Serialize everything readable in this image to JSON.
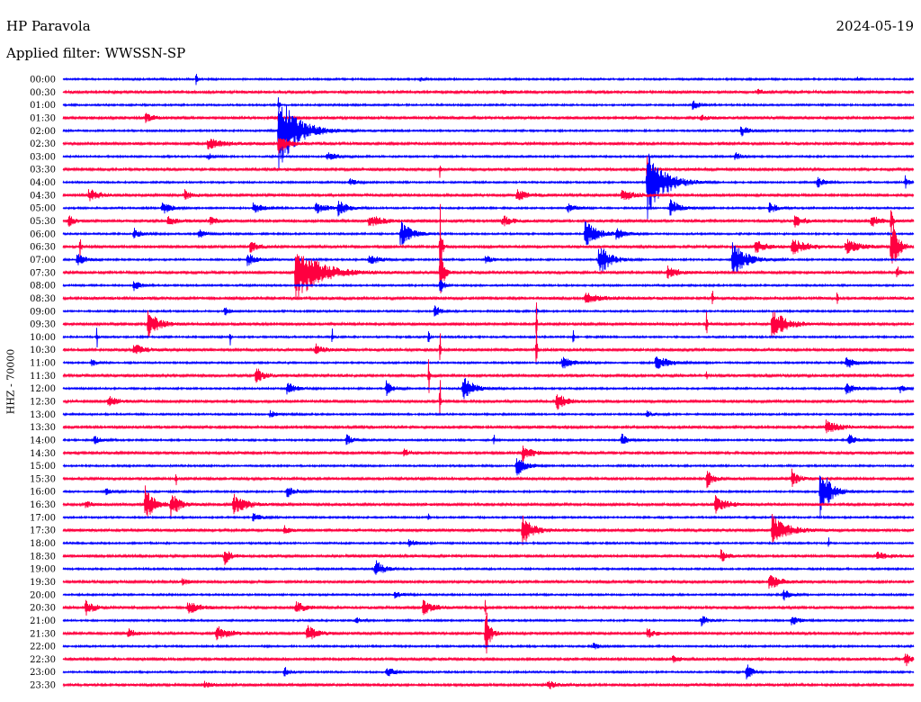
{
  "chart_data": {
    "type": "line",
    "title": "HP Paravola",
    "date": "2024-05-19",
    "subtitle": "Applied filter: WWSSN-SP",
    "xlabel": "",
    "ylabel": "HHZ - 70000",
    "line_colors": [
      "#0000ff",
      "#ff0040"
    ],
    "rows": [
      {
        "label": "00:00",
        "events": [
          {
            "t": 4.7,
            "amp": 6,
            "dur": 0.15
          },
          {
            "t": 12.6,
            "amp": 2,
            "dur": 0.3
          },
          {
            "t": 28.0,
            "amp": 2,
            "dur": 0.3
          }
        ]
      },
      {
        "label": "00:30",
        "events": [
          {
            "t": 15.5,
            "amp": 2,
            "dur": 0.5
          },
          {
            "t": 24.5,
            "amp": 2,
            "dur": 0.6
          }
        ]
      },
      {
        "label": "01:00",
        "events": [
          {
            "t": 7.6,
            "amp": 8,
            "dur": 0.1
          },
          {
            "t": 22.2,
            "amp": 5,
            "dur": 0.6
          }
        ]
      },
      {
        "label": "01:30",
        "events": [
          {
            "t": 2.9,
            "amp": 4,
            "dur": 0.8
          },
          {
            "t": 7.6,
            "amp": 6,
            "dur": 0.2
          },
          {
            "t": 22.5,
            "amp": 3,
            "dur": 0.6
          }
        ]
      },
      {
        "label": "02:00",
        "events": [
          {
            "t": 7.6,
            "amp": 36,
            "dur": 1.8
          },
          {
            "t": 23.9,
            "amp": 5,
            "dur": 0.8
          }
        ]
      },
      {
        "label": "02:30",
        "events": [
          {
            "t": 5.1,
            "amp": 5,
            "dur": 1.4
          },
          {
            "t": 7.6,
            "amp": 10,
            "dur": 0.8
          }
        ]
      },
      {
        "label": "03:00",
        "events": [
          {
            "t": 5.1,
            "amp": 3,
            "dur": 0.6
          },
          {
            "t": 9.3,
            "amp": 4,
            "dur": 1.0
          },
          {
            "t": 23.7,
            "amp": 4,
            "dur": 0.6
          }
        ]
      },
      {
        "label": "03:30",
        "events": [
          {
            "t": 13.3,
            "amp": 10,
            "dur": 0.05
          },
          {
            "t": 20.6,
            "amp": 12,
            "dur": 0.1
          }
        ]
      },
      {
        "label": "04:00",
        "events": [
          {
            "t": 10.1,
            "amp": 4,
            "dur": 0.6
          },
          {
            "t": 20.6,
            "amp": 34,
            "dur": 1.6
          },
          {
            "t": 26.6,
            "amp": 5,
            "dur": 0.6
          },
          {
            "t": 29.7,
            "amp": 6,
            "dur": 0.3
          }
        ]
      },
      {
        "label": "04:30",
        "events": [
          {
            "t": 0.9,
            "amp": 6,
            "dur": 1.0
          },
          {
            "t": 4.3,
            "amp": 5,
            "dur": 0.6
          },
          {
            "t": 16.0,
            "amp": 5,
            "dur": 1.0
          },
          {
            "t": 19.7,
            "amp": 5,
            "dur": 1.2
          }
        ]
      },
      {
        "label": "05:00",
        "events": [
          {
            "t": 3.5,
            "amp": 6,
            "dur": 0.8
          },
          {
            "t": 6.7,
            "amp": 5,
            "dur": 1.0
          },
          {
            "t": 8.9,
            "amp": 5,
            "dur": 1.2
          },
          {
            "t": 9.7,
            "amp": 7,
            "dur": 0.8
          },
          {
            "t": 17.8,
            "amp": 4,
            "dur": 0.8
          },
          {
            "t": 21.4,
            "amp": 8,
            "dur": 1.0
          },
          {
            "t": 24.9,
            "amp": 5,
            "dur": 0.8
          }
        ]
      },
      {
        "label": "05:30",
        "events": [
          {
            "t": 0.2,
            "amp": 5,
            "dur": 0.6
          },
          {
            "t": 3.7,
            "amp": 5,
            "dur": 0.8
          },
          {
            "t": 5.2,
            "amp": 4,
            "dur": 0.6
          },
          {
            "t": 10.8,
            "amp": 6,
            "dur": 1.2
          },
          {
            "t": 15.5,
            "amp": 5,
            "dur": 1.0
          },
          {
            "t": 25.8,
            "amp": 6,
            "dur": 0.8
          },
          {
            "t": 28.5,
            "amp": 5,
            "dur": 1.0
          },
          {
            "t": 29.2,
            "amp": 18,
            "dur": 0.1
          }
        ]
      },
      {
        "label": "06:00",
        "events": [
          {
            "t": 2.5,
            "amp": 5,
            "dur": 0.8
          },
          {
            "t": 4.8,
            "amp": 4,
            "dur": 0.6
          },
          {
            "t": 11.9,
            "amp": 12,
            "dur": 1.0
          },
          {
            "t": 18.4,
            "amp": 12,
            "dur": 1.2
          },
          {
            "t": 19.5,
            "amp": 5,
            "dur": 0.8
          }
        ]
      },
      {
        "label": "06:30",
        "events": [
          {
            "t": 0.6,
            "amp": 10,
            "dur": 0.1
          },
          {
            "t": 6.6,
            "amp": 5,
            "dur": 0.8
          },
          {
            "t": 13.3,
            "amp": 40,
            "dur": 0.15
          },
          {
            "t": 24.4,
            "amp": 6,
            "dur": 1.0
          },
          {
            "t": 25.7,
            "amp": 7,
            "dur": 1.5
          },
          {
            "t": 27.6,
            "amp": 7,
            "dur": 1.2
          },
          {
            "t": 29.2,
            "amp": 30,
            "dur": 0.6
          }
        ]
      },
      {
        "label": "07:00",
        "events": [
          {
            "t": 0.5,
            "amp": 6,
            "dur": 0.8
          },
          {
            "t": 6.5,
            "amp": 6,
            "dur": 0.8
          },
          {
            "t": 10.8,
            "amp": 5,
            "dur": 1.0
          },
          {
            "t": 14.9,
            "amp": 4,
            "dur": 0.6
          },
          {
            "t": 18.9,
            "amp": 16,
            "dur": 1.0
          },
          {
            "t": 23.6,
            "amp": 18,
            "dur": 1.2
          }
        ]
      },
      {
        "label": "07:30",
        "events": [
          {
            "t": 8.2,
            "amp": 28,
            "dur": 2.2
          },
          {
            "t": 13.3,
            "amp": 28,
            "dur": 0.3
          },
          {
            "t": 21.3,
            "amp": 6,
            "dur": 1.0
          },
          {
            "t": 29.4,
            "amp": 8,
            "dur": 0.2
          }
        ]
      },
      {
        "label": "08:00",
        "events": [
          {
            "t": 2.5,
            "amp": 5,
            "dur": 0.6
          },
          {
            "t": 13.3,
            "amp": 10,
            "dur": 0.3
          }
        ]
      },
      {
        "label": "08:30",
        "events": [
          {
            "t": 18.4,
            "amp": 5,
            "dur": 1.5
          },
          {
            "t": 22.9,
            "amp": 12,
            "dur": 0.05
          },
          {
            "t": 27.3,
            "amp": 14,
            "dur": 0.05
          }
        ]
      },
      {
        "label": "09:00",
        "events": [
          {
            "t": 5.7,
            "amp": 4,
            "dur": 0.6
          },
          {
            "t": 13.1,
            "amp": 6,
            "dur": 0.5
          },
          {
            "t": 16.7,
            "amp": 8,
            "dur": 0.05
          }
        ]
      },
      {
        "label": "09:30",
        "events": [
          {
            "t": 3.0,
            "amp": 12,
            "dur": 1.0
          },
          {
            "t": 16.7,
            "amp": 20,
            "dur": 0.05
          },
          {
            "t": 22.7,
            "amp": 18,
            "dur": 0.05
          },
          {
            "t": 25.0,
            "amp": 16,
            "dur": 1.2
          }
        ]
      },
      {
        "label": "10:00",
        "events": [
          {
            "t": 1.2,
            "amp": 12,
            "dur": 0.05
          },
          {
            "t": 5.9,
            "amp": 10,
            "dur": 0.05
          },
          {
            "t": 9.5,
            "amp": 8,
            "dur": 0.05
          },
          {
            "t": 12.9,
            "amp": 14,
            "dur": 0.05
          },
          {
            "t": 18.0,
            "amp": 8,
            "dur": 0.05
          }
        ]
      },
      {
        "label": "10:30",
        "events": [
          {
            "t": 2.5,
            "amp": 5,
            "dur": 1.0
          },
          {
            "t": 8.9,
            "amp": 5,
            "dur": 0.8
          },
          {
            "t": 13.3,
            "amp": 20,
            "dur": 0.05
          },
          {
            "t": 16.7,
            "amp": 28,
            "dur": 0.05
          }
        ]
      },
      {
        "label": "11:00",
        "events": [
          {
            "t": 1.0,
            "amp": 3,
            "dur": 0.5
          },
          {
            "t": 17.6,
            "amp": 6,
            "dur": 1.0
          },
          {
            "t": 20.9,
            "amp": 7,
            "dur": 1.2
          },
          {
            "t": 27.6,
            "amp": 6,
            "dur": 1.0
          }
        ]
      },
      {
        "label": "11:30",
        "events": [
          {
            "t": 6.8,
            "amp": 7,
            "dur": 0.8
          },
          {
            "t": 12.9,
            "amp": 30,
            "dur": 0.05
          },
          {
            "t": 22.7,
            "amp": 8,
            "dur": 0.05
          }
        ]
      },
      {
        "label": "12:00",
        "events": [
          {
            "t": 7.9,
            "amp": 6,
            "dur": 0.8
          },
          {
            "t": 11.4,
            "amp": 8,
            "dur": 0.6
          },
          {
            "t": 14.1,
            "amp": 12,
            "dur": 1.0
          },
          {
            "t": 27.6,
            "amp": 6,
            "dur": 0.8
          },
          {
            "t": 29.5,
            "amp": 4,
            "dur": 0.5
          }
        ]
      },
      {
        "label": "12:30",
        "events": [
          {
            "t": 1.6,
            "amp": 5,
            "dur": 0.8
          },
          {
            "t": 13.3,
            "amp": 25,
            "dur": 0.05
          },
          {
            "t": 17.4,
            "amp": 9,
            "dur": 0.8
          }
        ]
      },
      {
        "label": "13:00",
        "events": [
          {
            "t": 7.3,
            "amp": 3,
            "dur": 0.6
          },
          {
            "t": 20.6,
            "amp": 3,
            "dur": 0.6
          }
        ]
      },
      {
        "label": "13:30",
        "events": [
          {
            "t": 26.9,
            "amp": 6,
            "dur": 1.2
          }
        ]
      },
      {
        "label": "14:00",
        "events": [
          {
            "t": 1.1,
            "amp": 4,
            "dur": 0.6
          },
          {
            "t": 10.0,
            "amp": 5,
            "dur": 0.6
          },
          {
            "t": 15.2,
            "amp": 6,
            "dur": 0.05
          },
          {
            "t": 19.7,
            "amp": 6,
            "dur": 0.6
          },
          {
            "t": 27.7,
            "amp": 7,
            "dur": 0.5
          }
        ]
      },
      {
        "label": "14:30",
        "events": [
          {
            "t": 12.0,
            "amp": 4,
            "dur": 0.6
          },
          {
            "t": 16.2,
            "amp": 8,
            "dur": 0.8
          }
        ]
      },
      {
        "label": "15:00",
        "events": [
          {
            "t": 16.0,
            "amp": 10,
            "dur": 0.8
          }
        ]
      },
      {
        "label": "15:30",
        "events": [
          {
            "t": 4.0,
            "amp": 10,
            "dur": 0.05
          },
          {
            "t": 22.7,
            "amp": 8,
            "dur": 0.6
          },
          {
            "t": 25.7,
            "amp": 8,
            "dur": 0.6
          }
        ]
      },
      {
        "label": "16:00",
        "events": [
          {
            "t": 1.5,
            "amp": 3,
            "dur": 0.6
          },
          {
            "t": 7.9,
            "amp": 5,
            "dur": 0.8
          },
          {
            "t": 26.7,
            "amp": 24,
            "dur": 1.0
          }
        ]
      },
      {
        "label": "16:30",
        "events": [
          {
            "t": 0.8,
            "amp": 3,
            "dur": 0.5
          },
          {
            "t": 2.9,
            "amp": 16,
            "dur": 0.8
          },
          {
            "t": 3.8,
            "amp": 12,
            "dur": 0.8
          },
          {
            "t": 6.0,
            "amp": 9,
            "dur": 1.2
          },
          {
            "t": 23.0,
            "amp": 8,
            "dur": 1.0
          }
        ]
      },
      {
        "label": "17:00",
        "events": [
          {
            "t": 6.7,
            "amp": 4,
            "dur": 0.8
          },
          {
            "t": 12.9,
            "amp": 5,
            "dur": 0.05
          }
        ]
      },
      {
        "label": "17:30",
        "events": [
          {
            "t": 7.8,
            "amp": 4,
            "dur": 0.6
          },
          {
            "t": 16.2,
            "amp": 14,
            "dur": 1.0
          },
          {
            "t": 25.0,
            "amp": 14,
            "dur": 1.4
          }
        ]
      },
      {
        "label": "18:00",
        "events": [
          {
            "t": 12.2,
            "amp": 4,
            "dur": 0.6
          },
          {
            "t": 27.0,
            "amp": 6,
            "dur": 0.05
          }
        ]
      },
      {
        "label": "18:30",
        "events": [
          {
            "t": 5.7,
            "amp": 8,
            "dur": 0.5
          },
          {
            "t": 23.2,
            "amp": 6,
            "dur": 0.6
          },
          {
            "t": 28.7,
            "amp": 4,
            "dur": 1.0
          }
        ]
      },
      {
        "label": "19:00",
        "events": [
          {
            "t": 11.0,
            "amp": 9,
            "dur": 0.8
          }
        ]
      },
      {
        "label": "19:30",
        "events": [
          {
            "t": 4.2,
            "amp": 3,
            "dur": 0.5
          },
          {
            "t": 24.9,
            "amp": 7,
            "dur": 1.0
          }
        ]
      },
      {
        "label": "20:00",
        "events": [
          {
            "t": 11.7,
            "amp": 3,
            "dur": 0.6
          },
          {
            "t": 25.4,
            "amp": 6,
            "dur": 0.6
          }
        ]
      },
      {
        "label": "20:30",
        "events": [
          {
            "t": 0.8,
            "amp": 7,
            "dur": 0.8
          },
          {
            "t": 4.4,
            "amp": 6,
            "dur": 1.0
          },
          {
            "t": 8.2,
            "amp": 6,
            "dur": 0.8
          },
          {
            "t": 12.7,
            "amp": 6,
            "dur": 1.0
          },
          {
            "t": 14.9,
            "amp": 12,
            "dur": 0.05
          }
        ]
      },
      {
        "label": "21:00",
        "events": [
          {
            "t": 10.3,
            "amp": 3,
            "dur": 0.6
          },
          {
            "t": 22.5,
            "amp": 5,
            "dur": 0.6
          },
          {
            "t": 25.7,
            "amp": 5,
            "dur": 0.6
          }
        ]
      },
      {
        "label": "21:30",
        "events": [
          {
            "t": 2.3,
            "amp": 5,
            "dur": 0.5
          },
          {
            "t": 5.4,
            "amp": 7,
            "dur": 1.2
          },
          {
            "t": 8.6,
            "amp": 9,
            "dur": 0.8
          },
          {
            "t": 14.9,
            "amp": 26,
            "dur": 0.4
          },
          {
            "t": 20.6,
            "amp": 4,
            "dur": 0.8
          }
        ]
      },
      {
        "label": "22:00",
        "events": [
          {
            "t": 18.7,
            "amp": 4,
            "dur": 0.4
          }
        ]
      },
      {
        "label": "22:30",
        "events": [
          {
            "t": 21.5,
            "amp": 3,
            "dur": 0.6
          },
          {
            "t": 29.7,
            "amp": 8,
            "dur": 0.4
          }
        ]
      },
      {
        "label": "23:00",
        "events": [
          {
            "t": 7.8,
            "amp": 5,
            "dur": 0.5
          },
          {
            "t": 11.4,
            "amp": 5,
            "dur": 0.8
          },
          {
            "t": 24.1,
            "amp": 8,
            "dur": 0.6
          }
        ]
      },
      {
        "label": "23:30",
        "events": [
          {
            "t": 5.0,
            "amp": 3,
            "dur": 0.5
          },
          {
            "t": 17.1,
            "amp": 4,
            "dur": 0.8
          }
        ]
      }
    ]
  }
}
